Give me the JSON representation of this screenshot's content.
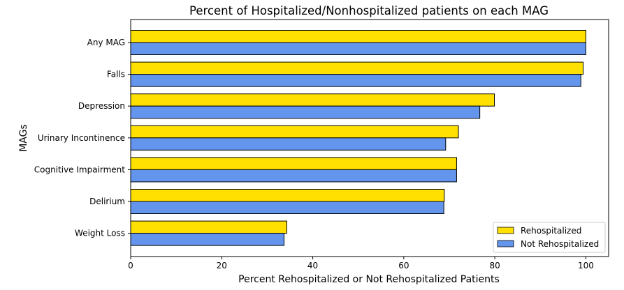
{
  "chart_data": {
    "type": "bar",
    "orientation": "horizontal",
    "title": "Percent of Hospitalized/Nonhospitalized patients on each MAG",
    "xlabel": "Percent Rehospitalized or Not Rehospitalized Patients",
    "ylabel": "MAGs",
    "xlim": [
      0,
      105
    ],
    "xticks": [
      "0",
      "20",
      "40",
      "60",
      "80",
      "100"
    ],
    "xtick_values": [
      0,
      20,
      40,
      60,
      80,
      100
    ],
    "categories": [
      "Any MAG",
      "Falls",
      "Depression",
      "Urinary Incontinence",
      "Cognitive Impairment",
      "Delirium",
      "Weight Loss"
    ],
    "series": [
      {
        "name": "Rehospitalized",
        "color": "#FFE000",
        "values": [
          100.0,
          99.4,
          79.9,
          72.0,
          71.6,
          68.9,
          34.3
        ]
      },
      {
        "name": "Not Rehospitalized",
        "color": "#6495ED",
        "values": [
          100.0,
          98.9,
          76.7,
          69.2,
          71.6,
          68.8,
          33.7
        ]
      }
    ],
    "grid": false,
    "legend_position": "lower-right"
  }
}
